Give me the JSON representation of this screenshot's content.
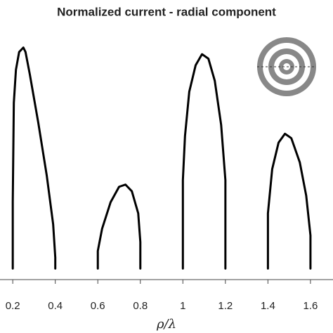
{
  "chart_data": {
    "type": "line",
    "title": "Normalized current - radial component",
    "xlabel": "ρ/λ",
    "x": [
      0.2,
      0.2,
      0.205,
      0.215,
      0.23,
      0.25,
      0.26,
      0.28,
      0.32,
      0.36,
      0.39,
      0.4,
      0.4,
      null,
      0.6,
      0.6,
      0.62,
      0.66,
      0.7,
      0.73,
      0.76,
      0.79,
      0.8,
      0.8,
      null,
      1.0,
      1.0,
      1.01,
      1.03,
      1.06,
      1.09,
      1.12,
      1.15,
      1.18,
      1.2,
      1.2,
      null,
      1.4,
      1.4,
      1.42,
      1.45,
      1.48,
      1.51,
      1.55,
      1.58,
      1.6,
      1.6
    ],
    "values": [
      0,
      0.3,
      0.75,
      0.9,
      0.98,
      1.0,
      0.98,
      0.88,
      0.66,
      0.42,
      0.2,
      0.05,
      0,
      null,
      0,
      0.08,
      0.18,
      0.3,
      0.37,
      0.38,
      0.35,
      0.25,
      0.12,
      0,
      null,
      0,
      0.4,
      0.6,
      0.8,
      0.92,
      0.97,
      0.95,
      0.85,
      0.65,
      0.4,
      0,
      null,
      0,
      0.25,
      0.45,
      0.57,
      0.61,
      0.59,
      0.48,
      0.33,
      0.15,
      0
    ],
    "color": "#000000",
    "xlim": [
      0.14,
      1.706
    ],
    "ylim": [
      -0.05,
      1.05
    ],
    "xticks": [
      0.2,
      0.4,
      0.6,
      0.8,
      1,
      1.2,
      1.4,
      1.6
    ]
  }
}
